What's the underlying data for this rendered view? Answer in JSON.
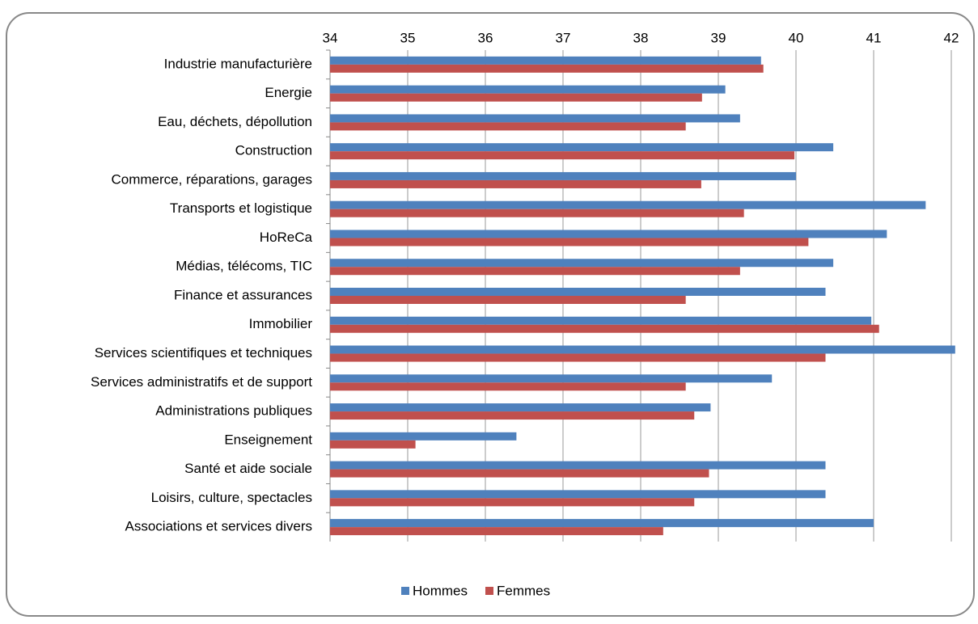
{
  "chart_data": {
    "type": "hbar",
    "categories": [
      "Industrie manufacturière",
      "Energie",
      "Eau, déchets, dépollution",
      "Construction",
      "Commerce, réparations, garages",
      "Transports et logistique",
      "HoReCa",
      "Médias, télécoms, TIC",
      "Finance et assurances",
      "Immobilier",
      "Services scientifiques et techniques",
      "Services administratifs et de support",
      "Administrations publiques",
      "Enseignement",
      "Santé et aide sociale",
      "Loisirs, culture, spectacles",
      "Associations et services divers"
    ],
    "series": [
      {
        "name": "Hommes",
        "color": "#4f81bd",
        "values": [
          39.55,
          39.09,
          39.28,
          40.48,
          40.0,
          41.67,
          41.17,
          40.48,
          40.38,
          40.97,
          42.05,
          39.69,
          38.9,
          36.4,
          40.38,
          40.38,
          41.0
        ]
      },
      {
        "name": "Femmes",
        "color": "#c0504d",
        "values": [
          39.58,
          38.79,
          38.58,
          39.98,
          38.78,
          39.33,
          40.16,
          39.28,
          38.58,
          41.07,
          40.38,
          38.58,
          38.69,
          35.1,
          38.88,
          38.69,
          38.29
        ]
      }
    ],
    "xlim": [
      34,
      42
    ],
    "xticks": [
      34,
      35,
      36,
      37,
      38,
      39,
      40,
      41,
      42
    ],
    "grid": true
  }
}
